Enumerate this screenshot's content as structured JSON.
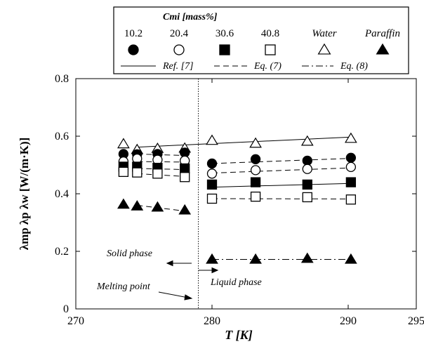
{
  "chart_data": {
    "type": "scatter",
    "xlabel": "T [K]",
    "ylabel": "λmp λp λw [W/(m·K)]",
    "xlim": [
      270,
      295
    ],
    "ylim": [
      0,
      0.8
    ],
    "x_ticks": [
      "270",
      "280",
      "290",
      "295"
    ],
    "y_ticks": [
      "0",
      "0.2",
      "0.4",
      "0.6",
      "0.8"
    ],
    "grid": false,
    "legend_placement": "top",
    "legend": {
      "title": "Cmi [mass%]",
      "entries": [
        {
          "label": "10.2",
          "marker": "filled-circle"
        },
        {
          "label": "20.4",
          "marker": "open-circle"
        },
        {
          "label": "30.6",
          "marker": "filled-square"
        },
        {
          "label": "40.8",
          "marker": "open-square"
        },
        {
          "label": "Water",
          "marker": "open-triangle"
        },
        {
          "label": "Paraffin",
          "marker": "filled-triangle"
        }
      ],
      "line_entries": [
        {
          "label": "Ref. [7]",
          "style": "solid"
        },
        {
          "label": "Eq. (7)",
          "style": "dashed"
        },
        {
          "label": "Eq. (8)",
          "style": "dashdot"
        }
      ]
    },
    "series": [
      {
        "name": "Water",
        "marker": "open-triangle",
        "points": [
          [
            273.5,
            0.573
          ],
          [
            274.5,
            0.553
          ],
          [
            276.0,
            0.557
          ],
          [
            278.0,
            0.558
          ],
          [
            280.0,
            0.585
          ],
          [
            283.2,
            0.575
          ],
          [
            287.0,
            0.582
          ],
          [
            290.2,
            0.592
          ]
        ]
      },
      {
        "name": "10.2",
        "marker": "filled-circle",
        "points": [
          [
            273.5,
            0.538
          ],
          [
            274.5,
            0.537
          ],
          [
            276.0,
            0.538
          ],
          [
            278.0,
            0.543
          ],
          [
            280.0,
            0.505
          ],
          [
            283.2,
            0.52
          ],
          [
            287.0,
            0.515
          ],
          [
            290.2,
            0.525
          ]
        ]
      },
      {
        "name": "20.4",
        "marker": "open-circle",
        "points": [
          [
            273.5,
            0.512
          ],
          [
            274.5,
            0.522
          ],
          [
            276.0,
            0.518
          ],
          [
            278.0,
            0.515
          ],
          [
            280.0,
            0.47
          ],
          [
            283.2,
            0.482
          ],
          [
            287.0,
            0.486
          ],
          [
            290.2,
            0.493
          ]
        ]
      },
      {
        "name": "30.6",
        "marker": "filled-square",
        "points": [
          [
            273.5,
            0.494
          ],
          [
            274.5,
            0.494
          ],
          [
            276.0,
            0.49
          ],
          [
            278.0,
            0.488
          ],
          [
            280.0,
            0.432
          ],
          [
            283.2,
            0.44
          ],
          [
            287.0,
            0.432
          ],
          [
            290.2,
            0.44
          ]
        ]
      },
      {
        "name": "40.8",
        "marker": "open-square",
        "points": [
          [
            273.5,
            0.476
          ],
          [
            274.5,
            0.474
          ],
          [
            276.0,
            0.47
          ],
          [
            278.0,
            0.458
          ],
          [
            280.0,
            0.383
          ],
          [
            283.2,
            0.39
          ],
          [
            287.0,
            0.388
          ],
          [
            290.2,
            0.38
          ]
        ]
      },
      {
        "name": "Paraffin",
        "marker": "filled-triangle",
        "points": [
          [
            273.5,
            0.363
          ],
          [
            274.5,
            0.357
          ],
          [
            276.0,
            0.353
          ],
          [
            278.0,
            0.343
          ],
          [
            280.0,
            0.172
          ],
          [
            283.2,
            0.172
          ],
          [
            287.0,
            0.175
          ],
          [
            290.2,
            0.172
          ]
        ]
      }
    ],
    "lines": [
      {
        "style": "solid",
        "segments": [
          [
            [
              274.5,
              0.562
            ],
            [
              290.2,
              0.597
            ]
          ]
        ]
      },
      {
        "style": "solid",
        "segments": [
          [
            [
              280.0,
              0.423
            ],
            [
              290.2,
              0.436
            ]
          ]
        ]
      },
      {
        "style": "dashed",
        "segments": [
          [
            [
              274.5,
              0.538
            ],
            [
              278.0,
              0.533
            ]
          ],
          [
            [
              280.0,
              0.505
            ],
            [
              290.2,
              0.523
            ]
          ]
        ]
      },
      {
        "style": "dashed",
        "segments": [
          [
            [
              274.5,
              0.512
            ],
            [
              278.0,
              0.51
            ]
          ],
          [
            [
              280.0,
              0.472
            ],
            [
              290.2,
              0.49
            ]
          ]
        ]
      },
      {
        "style": "dashed",
        "segments": [
          [
            [
              274.5,
              0.488
            ],
            [
              278.0,
              0.484
            ]
          ]
        ]
      },
      {
        "style": "dashed",
        "segments": [
          [
            [
              274.5,
              0.47
            ],
            [
              278.0,
              0.46
            ]
          ],
          [
            [
              280.0,
              0.383
            ],
            [
              290.2,
              0.382
            ]
          ]
        ]
      },
      {
        "style": "dashed",
        "segments": [
          [
            [
              274.5,
              0.36
            ],
            [
              278.0,
              0.34
            ]
          ]
        ]
      },
      {
        "style": "dashdot",
        "segments": [
          [
            [
              280.0,
              0.172
            ],
            [
              290.2,
              0.172
            ]
          ]
        ]
      }
    ],
    "melting_point": 279,
    "annotations": {
      "solid_phase": "Solid phase",
      "liquid_phase": "Liquid phase",
      "melting_point": "Melting point"
    }
  }
}
